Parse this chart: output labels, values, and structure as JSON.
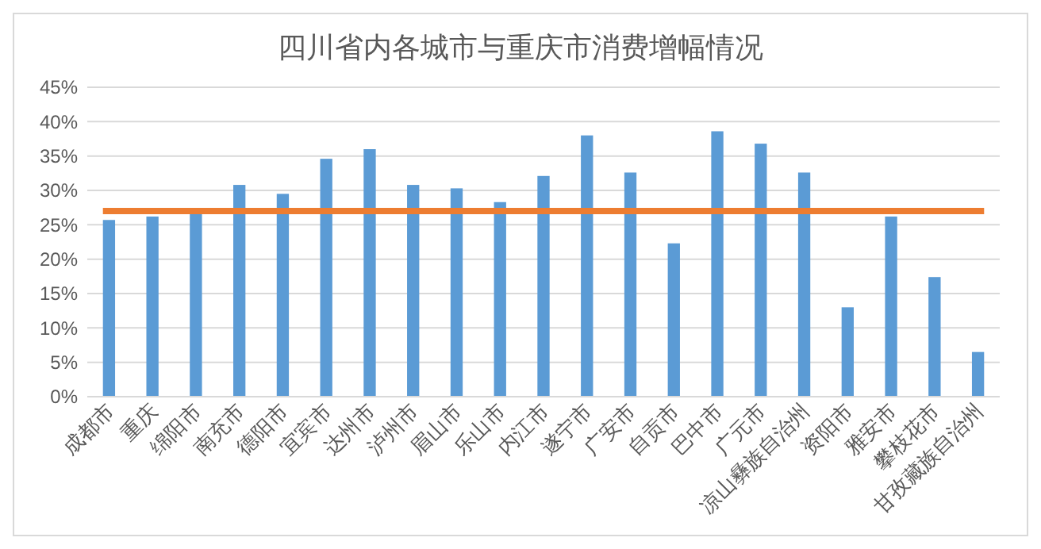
{
  "chart_data": {
    "type": "bar",
    "title": "四川省内各城市与重庆市消费增幅情况",
    "categories": [
      "成都市",
      "重庆",
      "绵阳市",
      "南充市",
      "德阳市",
      "宜宾市",
      "达州市",
      "泸州市",
      "眉山市",
      "乐山市",
      "内江市",
      "遂宁市",
      "广安市",
      "自贡市",
      "巴中市",
      "广元市",
      "凉山彝族自治州",
      "资阳市",
      "雅安市",
      "攀枝花市",
      "甘孜藏族自治州"
    ],
    "values": [
      25.7,
      26.2,
      26.7,
      30.8,
      29.5,
      34.6,
      36.0,
      30.8,
      30.3,
      28.3,
      32.1,
      38.0,
      32.6,
      22.3,
      38.6,
      36.8,
      32.6,
      13.0,
      26.2,
      17.4,
      6.5
    ],
    "color": "#5b9bd5",
    "ylim": [
      0,
      45
    ],
    "yticks": [
      {
        "value": 0,
        "label": "0%"
      },
      {
        "value": 5,
        "label": "5%"
      },
      {
        "value": 10,
        "label": "10%"
      },
      {
        "value": 15,
        "label": "15%"
      },
      {
        "value": 20,
        "label": "20%"
      },
      {
        "value": 25,
        "label": "25%"
      },
      {
        "value": 30,
        "label": "30%"
      },
      {
        "value": 35,
        "label": "35%"
      },
      {
        "value": 40,
        "label": "40%"
      },
      {
        "value": 45,
        "label": "45%"
      }
    ],
    "grid": "y",
    "ref_lines": [
      {
        "axis": "y",
        "value": 27,
        "color": "#ed7d31"
      }
    ]
  }
}
